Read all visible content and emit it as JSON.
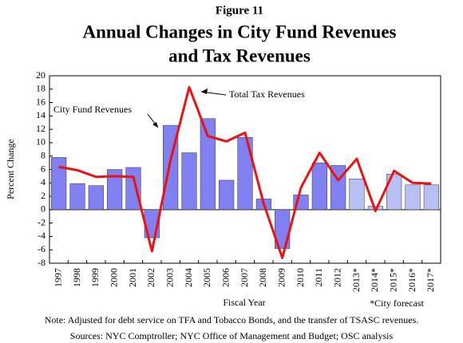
{
  "chart_data": {
    "type": "bar_line",
    "supertitle": "Figure 11",
    "title": [
      "Annual Changes in City Fund Revenues",
      "and Tax Revenues"
    ],
    "ylabel": "Percent Change",
    "xlabel": "Fiscal Year",
    "footnote": "*City forecast",
    "note": "Note: Adjusted for debt service on TFA and Tobacco Bonds, and the transfer of TSASC revenues.",
    "sources": "Sources: NYC Comptroller; NYC Office of Management and Budget; OSC analysis",
    "categories": [
      "1997",
      "1998",
      "1999",
      "2000",
      "2001",
      "2002",
      "2003",
      "2004",
      "2005",
      "2006",
      "2007",
      "2008",
      "2009",
      "2010",
      "2011",
      "2012",
      "2013*",
      "2014*",
      "2015*",
      "2016*",
      "2017*"
    ],
    "series": [
      {
        "name": "City Fund Revenues",
        "kind": "bar",
        "color": "#8080f0",
        "colors": [
          "#8080f0",
          "#8080f0",
          "#8080f0",
          "#8080f0",
          "#8080f0",
          "#8080f0",
          "#8080f0",
          "#8080f0",
          "#8080f0",
          "#8080f0",
          "#8080f0",
          "#8080f0",
          "#8080f0",
          "#8080f0",
          "#8080f0",
          "#8080f0",
          "#b8bff2",
          "#b8bff2",
          "#b8bff2",
          "#b8bff2",
          "#b8bff2"
        ],
        "values": [
          7.8,
          3.9,
          3.6,
          6.0,
          6.3,
          -4.2,
          12.6,
          8.5,
          13.6,
          4.4,
          10.8,
          1.6,
          -5.8,
          2.2,
          7.0,
          6.6,
          4.6,
          0.5,
          5.3,
          3.7,
          3.7
        ]
      },
      {
        "name": "Total Tax Revenues",
        "kind": "line",
        "color": "#ee1111",
        "values": [
          6.4,
          5.9,
          4.9,
          5.0,
          4.9,
          -6.2,
          7.4,
          18.3,
          11.0,
          10.2,
          11.5,
          0.9,
          -7.2,
          3.3,
          8.5,
          4.4,
          7.6,
          -0.2,
          5.8,
          4.0,
          3.9
        ]
      }
    ],
    "ylim": [
      -8,
      20
    ],
    "yticks": [
      -8,
      -6,
      -4,
      -2,
      0,
      2,
      4,
      6,
      8,
      10,
      12,
      14,
      16,
      18,
      20
    ]
  }
}
